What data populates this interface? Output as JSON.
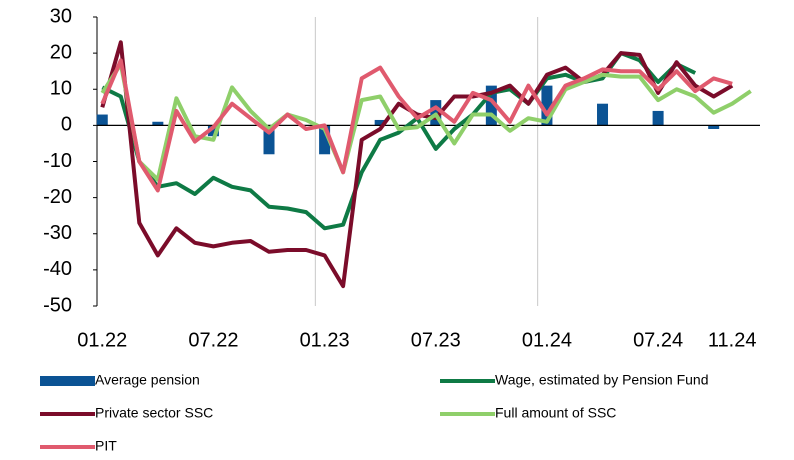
{
  "chart_data": {
    "type": "bar-line",
    "categories": [
      "01.22",
      null,
      null,
      null,
      null,
      null,
      "07.22",
      null,
      null,
      null,
      null,
      null,
      "01.23",
      null,
      null,
      null,
      null,
      null,
      "07.23",
      null,
      null,
      null,
      null,
      null,
      "01.24",
      null,
      null,
      null,
      null,
      null,
      "07.24",
      null,
      null,
      null,
      "11.24",
      null
    ],
    "series": [
      {
        "name": "Average pension",
        "kind": "bar",
        "color": "#0b5394",
        "values": [
          3,
          null,
          null,
          1,
          null,
          null,
          -3,
          null,
          null,
          -8,
          null,
          null,
          -8,
          null,
          null,
          1.5,
          null,
          null,
          7,
          null,
          null,
          11,
          null,
          null,
          11,
          null,
          null,
          6,
          null,
          null,
          4,
          null,
          null,
          -1,
          null,
          null
        ]
      },
      {
        "name": "Wage, estimated by Pension Fund",
        "kind": "line",
        "color": "#0e7a45",
        "values": [
          10.5,
          8,
          -10,
          -17,
          -16,
          -19,
          -14.5,
          -17,
          -18,
          -22.5,
          -23,
          -24,
          -28.5,
          -27.5,
          -13,
          -4,
          -2,
          2,
          -6.5,
          -1,
          3,
          9,
          10,
          6,
          13,
          14,
          12,
          13,
          20,
          18,
          12,
          17,
          14.5,
          null,
          null,
          null
        ]
      },
      {
        "name": "Private sector SSC",
        "kind": "line",
        "color": "#7b0c2a",
        "values": [
          5,
          23,
          -27,
          -36,
          -28.5,
          -32.5,
          -33.5,
          -32.5,
          -32,
          -35,
          -34.5,
          -34.5,
          -36,
          -44.5,
          -4,
          -1,
          6,
          3,
          2,
          8,
          8,
          9,
          11,
          6,
          14,
          16,
          12,
          14,
          20,
          19.5,
          9,
          17.5,
          11,
          8,
          11,
          null
        ]
      },
      {
        "name": "Full amount of SSC",
        "kind": "line",
        "color": "#8fcf6a",
        "values": [
          9,
          17,
          -10,
          -15,
          7.5,
          -3,
          -4,
          10.5,
          4,
          -1,
          3,
          1.5,
          -1,
          -13,
          7,
          8,
          -1,
          -0.5,
          3,
          -5,
          3,
          3,
          -1.5,
          2,
          1,
          10,
          12,
          14,
          13.5,
          13.5,
          7,
          10,
          8,
          3.5,
          6,
          9.5
        ]
      },
      {
        "name": "PIT",
        "kind": "line",
        "color": "#e05a6e",
        "values": [
          6,
          18,
          -10,
          -18,
          4,
          -4.5,
          -0.5,
          6,
          2,
          -2,
          3,
          -1,
          0,
          -13,
          13,
          16,
          8,
          2,
          5,
          1,
          9,
          7,
          1,
          11,
          3,
          11,
          13,
          15.5,
          15,
          15,
          10,
          15,
          9.5,
          13,
          11.5,
          null
        ]
      }
    ],
    "ylim": [
      -50,
      30
    ],
    "yticks": [
      -50,
      -40,
      -30,
      -20,
      -10,
      0,
      10,
      20,
      30
    ],
    "xgrid_every": 12
  }
}
